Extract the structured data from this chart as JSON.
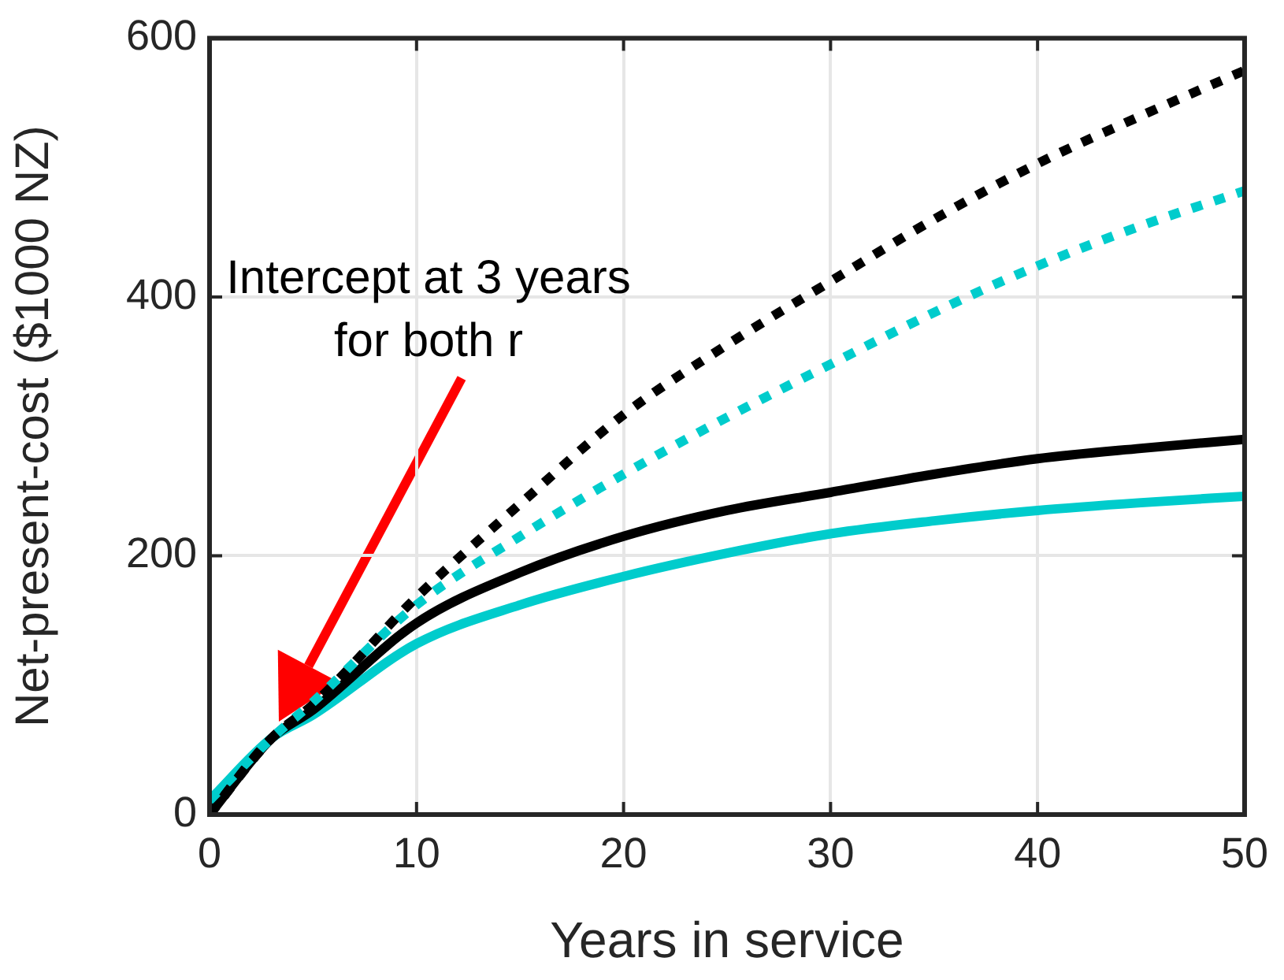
{
  "chart_data": {
    "type": "line",
    "xlabel": "Years in service",
    "ylabel": "Net-present-cost ($1000 NZ)",
    "x": [
      0,
      3,
      5,
      10,
      15,
      20,
      25,
      30,
      35,
      40,
      45,
      50
    ],
    "xlim": [
      0,
      50
    ],
    "xticks": [
      0,
      10,
      20,
      30,
      40,
      50
    ],
    "ylim": [
      0,
      600
    ],
    "yticks": [
      0,
      200,
      400,
      600
    ],
    "grid": true,
    "legend": false,
    "marker": "none",
    "series": [
      {
        "color": "#000000",
        "line_style": "dotted",
        "values": [
          0,
          59,
          85,
          168,
          240,
          309,
          363,
          412,
          460,
          503,
          540,
          575
        ]
      },
      {
        "color": "#00cccc",
        "line_style": "dotted",
        "values": [
          11,
          59,
          87,
          162,
          215,
          263,
          307,
          348,
          388,
          424,
          455,
          482
        ]
      },
      {
        "color": "#000000",
        "line_style": "solid",
        "values": [
          0,
          59,
          81,
          148,
          187,
          215,
          235,
          249,
          263,
          275,
          283,
          290
        ]
      },
      {
        "color": "#00cccc",
        "line_style": "solid",
        "values": [
          11,
          59,
          77,
          132,
          162,
          184,
          202,
          217,
          227,
          235,
          241,
          246
        ]
      }
    ],
    "annotations": [
      "Intercept at 3 years\nfor both r"
    ]
  }
}
